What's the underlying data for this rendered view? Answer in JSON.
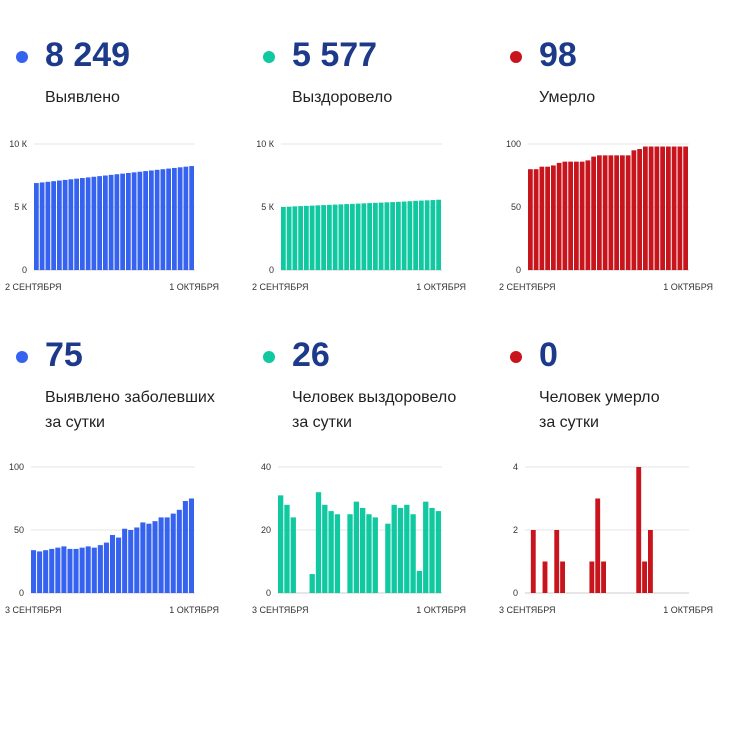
{
  "colors": {
    "blue": "#3563f0",
    "green": "#10c9a1",
    "red": "#c8151d",
    "title": "#1d3a8a"
  },
  "panels": [
    {
      "value": "8 249",
      "label_lines": [
        "Выявлено"
      ],
      "color": "#3563f0",
      "chart_data": {
        "type": "bar",
        "x_labels": [
          "2 СЕНТЯБРЯ",
          "1 ОКТЯБРЯ"
        ],
        "y_ticks": [
          {
            "v": 0,
            "label": "0"
          },
          {
            "v": 5000,
            "label": "5 К"
          },
          {
            "v": 10000,
            "label": "10 К"
          }
        ],
        "ylim": [
          0,
          10000
        ],
        "values": [
          6900,
          6950,
          7000,
          7050,
          7100,
          7150,
          7200,
          7250,
          7300,
          7350,
          7400,
          7450,
          7500,
          7550,
          7600,
          7650,
          7700,
          7750,
          7800,
          7850,
          7900,
          7950,
          8000,
          8050,
          8100,
          8150,
          8200,
          8249
        ]
      }
    },
    {
      "value": "5 577",
      "label_lines": [
        "Выздоровело"
      ],
      "color": "#10c9a1",
      "chart_data": {
        "type": "bar",
        "x_labels": [
          "2 СЕНТЯБРЯ",
          "1 ОКТЯБРЯ"
        ],
        "y_ticks": [
          {
            "v": 0,
            "label": "0"
          },
          {
            "v": 5000,
            "label": "5 К"
          },
          {
            "v": 10000,
            "label": "10 К"
          }
        ],
        "ylim": [
          0,
          10000
        ],
        "values": [
          5000,
          5020,
          5050,
          5070,
          5090,
          5110,
          5130,
          5150,
          5170,
          5190,
          5210,
          5230,
          5250,
          5270,
          5290,
          5310,
          5330,
          5350,
          5370,
          5390,
          5410,
          5430,
          5460,
          5490,
          5510,
          5530,
          5550,
          5577
        ]
      }
    },
    {
      "value": "98",
      "label_lines": [
        "Умерло"
      ],
      "color": "#c8151d",
      "chart_data": {
        "type": "bar",
        "x_labels": [
          "2 СЕНТЯБРЯ",
          "1 ОКТЯБРЯ"
        ],
        "y_ticks": [
          {
            "v": 0,
            "label": "0"
          },
          {
            "v": 50,
            "label": "50"
          },
          {
            "v": 100,
            "label": "100"
          }
        ],
        "ylim": [
          0,
          100
        ],
        "values": [
          80,
          80,
          82,
          82,
          83,
          85,
          86,
          86,
          86,
          86,
          87,
          90,
          91,
          91,
          91,
          91,
          91,
          91,
          95,
          96,
          98,
          98,
          98,
          98,
          98,
          98,
          98,
          98
        ]
      }
    },
    {
      "value": "75",
      "label_lines": [
        "Выявлено заболевших",
        "за сутки"
      ],
      "color": "#3563f0",
      "chart_data": {
        "type": "bar",
        "x_labels": [
          "3 СЕНТЯБРЯ",
          "1 ОКТЯБРЯ"
        ],
        "y_ticks": [
          {
            "v": 0,
            "label": "0"
          },
          {
            "v": 50,
            "label": "50"
          },
          {
            "v": 100,
            "label": "100"
          }
        ],
        "ylim": [
          0,
          100
        ],
        "values": [
          34,
          33,
          34,
          35,
          36,
          37,
          35,
          35,
          36,
          37,
          36,
          38,
          40,
          46,
          44,
          51,
          50,
          52,
          56,
          55,
          57,
          60,
          60,
          63,
          66,
          73,
          75
        ]
      }
    },
    {
      "value": "26",
      "label_lines": [
        "Человек выздоровело",
        "за сутки"
      ],
      "color": "#10c9a1",
      "chart_data": {
        "type": "bar",
        "x_labels": [
          "3 СЕНТЯБРЯ",
          "1 ОКТЯБРЯ"
        ],
        "y_ticks": [
          {
            "v": 0,
            "label": "0"
          },
          {
            "v": 20,
            "label": "20"
          },
          {
            "v": 40,
            "label": "40"
          }
        ],
        "ylim": [
          0,
          40
        ],
        "values": [
          31,
          28,
          24,
          0,
          0,
          6,
          32,
          28,
          26,
          25,
          0,
          25,
          29,
          27,
          25,
          24,
          0,
          22,
          28,
          27,
          28,
          25,
          7,
          29,
          27,
          26
        ]
      }
    },
    {
      "value": "0",
      "label_lines": [
        "Человек умерло",
        "за сутки"
      ],
      "color": "#c8151d",
      "chart_data": {
        "type": "bar",
        "x_labels": [
          "3 СЕНТЯБРЯ",
          "1 ОКТЯБРЯ"
        ],
        "y_ticks": [
          {
            "v": 0,
            "label": "0"
          },
          {
            "v": 2,
            "label": "2"
          },
          {
            "v": 4,
            "label": "4"
          }
        ],
        "ylim": [
          0,
          4
        ],
        "values": [
          0,
          2,
          0,
          1,
          0,
          2,
          1,
          0,
          0,
          0,
          0,
          1,
          3,
          1,
          0,
          0,
          0,
          0,
          0,
          4,
          1,
          2,
          0,
          0,
          0,
          0,
          0,
          0
        ]
      }
    }
  ]
}
